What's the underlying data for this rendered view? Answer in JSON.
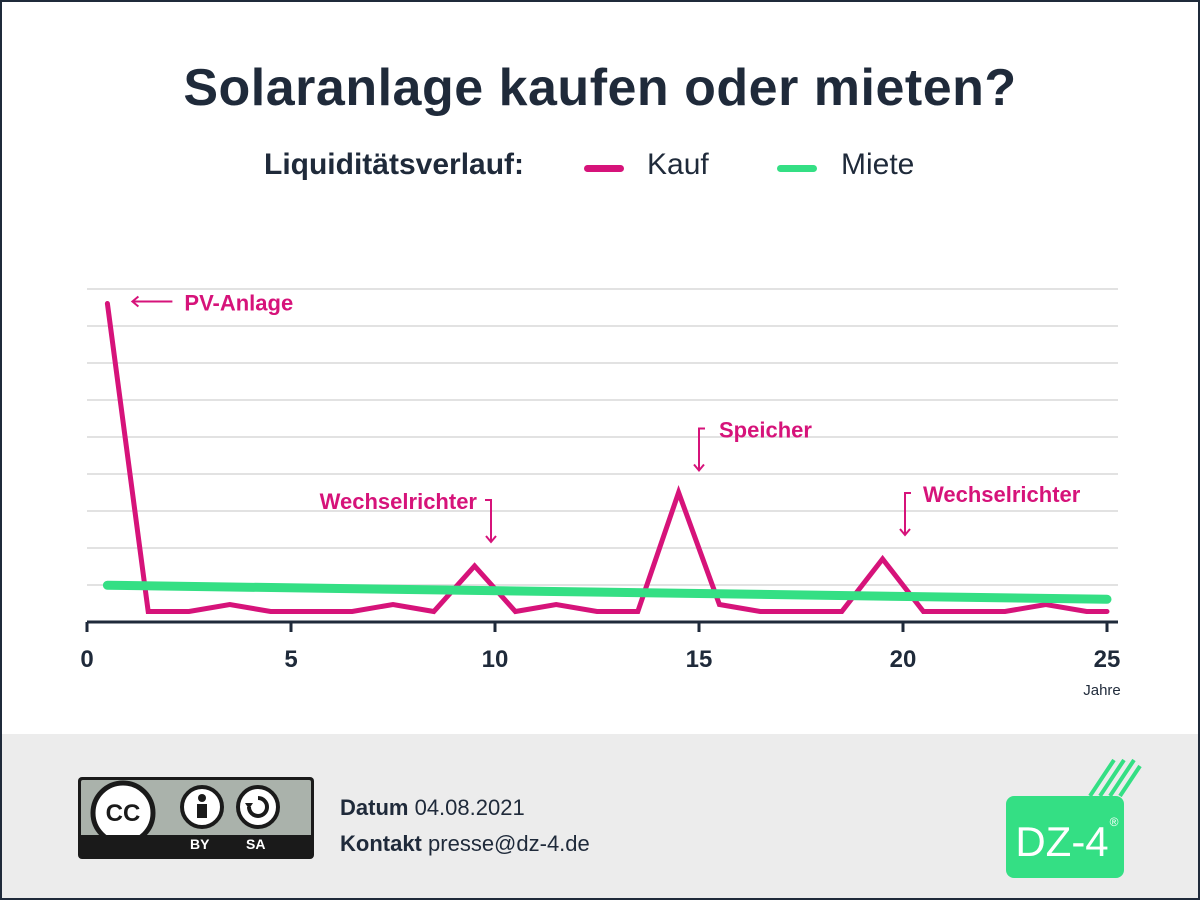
{
  "title": "Solaranlage kaufen oder mieten?",
  "legend": {
    "label": "Liquiditätsverlauf:",
    "items": [
      {
        "name": "Kauf",
        "color": "#d6137a"
      },
      {
        "name": "Miete",
        "color": "#34df84"
      }
    ]
  },
  "chart_data": {
    "type": "line",
    "xlabel": "Jahre",
    "ylabel": "",
    "xlim": [
      0,
      25
    ],
    "ylim": [
      0,
      10
    ],
    "x_ticks": [
      "0",
      "5",
      "10",
      "15",
      "20",
      "25"
    ],
    "grid": true,
    "series": [
      {
        "name": "Kauf",
        "color": "#d6137a",
        "x": [
          0.5,
          1.5,
          2.5,
          3.5,
          4.5,
          5.5,
          6.5,
          7.5,
          8.5,
          9.5,
          10.5,
          11.5,
          12.5,
          13.5,
          14.5,
          15.5,
          16.5,
          17.5,
          18.5,
          19.5,
          20.5,
          21.5,
          22.5,
          23.5,
          24.5,
          25
        ],
        "y": [
          9.1,
          0.3,
          0.3,
          0.5,
          0.3,
          0.3,
          0.3,
          0.5,
          0.3,
          1.6,
          0.3,
          0.5,
          0.3,
          0.3,
          3.7,
          0.5,
          0.3,
          0.3,
          0.3,
          1.8,
          0.3,
          0.3,
          0.3,
          0.5,
          0.3,
          0.3
        ]
      },
      {
        "name": "Miete",
        "color": "#34df84",
        "x": [
          0.5,
          25
        ],
        "y": [
          1.05,
          0.65
        ]
      }
    ],
    "annotations": [
      {
        "text": "PV-Anlage",
        "x": 0.5,
        "y": 9.1
      },
      {
        "text": "Wechselrichter",
        "x": 10,
        "y": 1.6
      },
      {
        "text": "Speicher",
        "x": 15,
        "y": 3.7
      },
      {
        "text": "Wechselrichter",
        "x": 20,
        "y": 1.8
      }
    ]
  },
  "footer": {
    "license": {
      "cc": "CC",
      "by": "BY",
      "sa": "SA"
    },
    "date_label": "Datum",
    "date_value": "04.08.2021",
    "contact_label": "Kontakt",
    "contact_value": "presse@dz-4.de",
    "logo_text": "DZ-4",
    "logo_mark": "®",
    "logo_color": "#34df84"
  }
}
